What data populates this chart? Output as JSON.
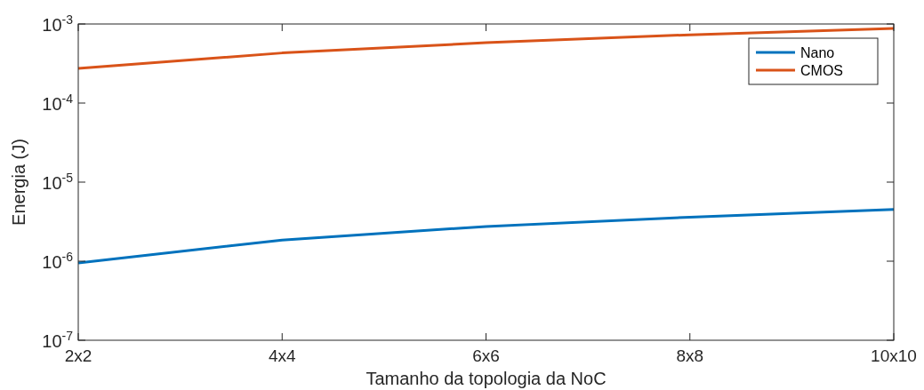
{
  "chart_data": {
    "type": "line",
    "xlabel": "Tamanho da topologia da NoC",
    "ylabel": "Energia (J)",
    "categories": [
      "2x2",
      "4x4",
      "6x6",
      "8x8",
      "10x10"
    ],
    "series": [
      {
        "name": "Nano",
        "color": "#0072bd",
        "values": [
          9.5e-07,
          1.85e-06,
          2.75e-06,
          3.6e-06,
          4.5e-06
        ]
      },
      {
        "name": "CMOS",
        "color": "#d95319",
        "values": [
          0.000275,
          0.00043,
          0.00058,
          0.00073,
          0.00088
        ]
      }
    ],
    "log": true,
    "ylim": [
      1e-07,
      0.001
    ],
    "yticks": [
      {
        "value": 1e-07,
        "label": "10$^{-7}$"
      },
      {
        "value": 1e-06,
        "label": "10$^{-6}$"
      },
      {
        "value": 1e-05,
        "label": "10$^{-5}$"
      },
      {
        "value": 0.0001,
        "label": "10$^{-4}$"
      },
      {
        "value": 0.001,
        "label": "10$^{-3}$"
      }
    ],
    "grid": false,
    "legend": "top right",
    "marker": "none",
    "line_style": "solid"
  }
}
